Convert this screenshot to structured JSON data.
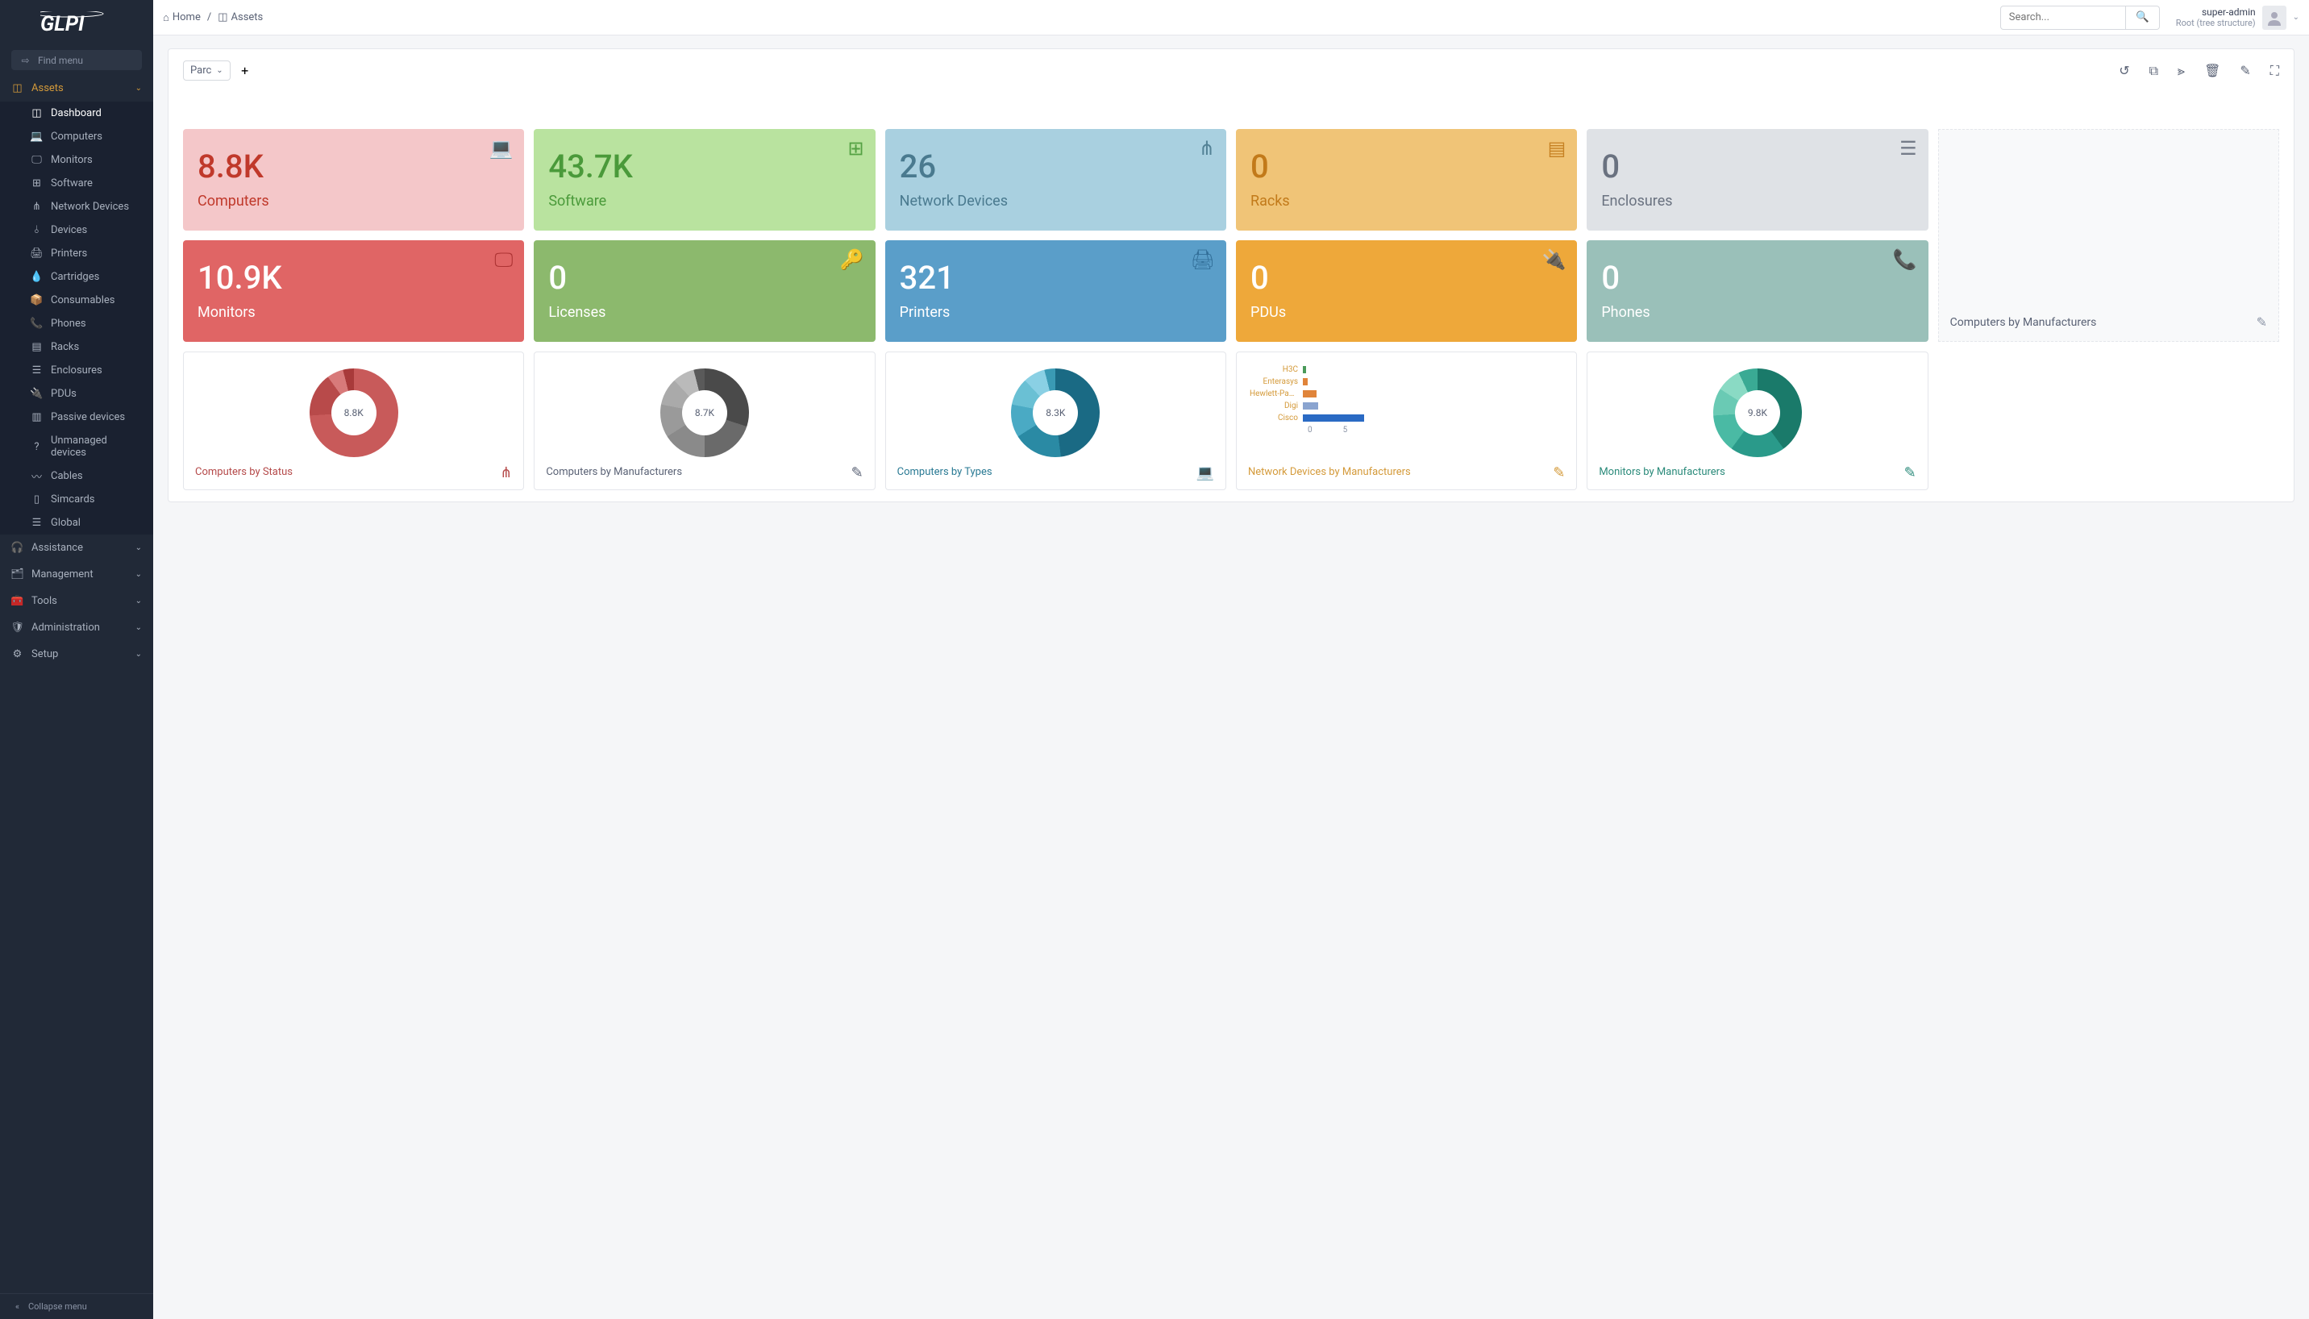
{
  "app": {
    "name": "GLPI"
  },
  "sidebar": {
    "find_menu": "Find menu",
    "sections": {
      "assets": {
        "label": "Assets",
        "active": true
      },
      "assistance": {
        "label": "Assistance"
      },
      "management": {
        "label": "Management"
      },
      "tools": {
        "label": "Tools"
      },
      "administration": {
        "label": "Administration"
      },
      "setup": {
        "label": "Setup"
      }
    },
    "assets_items": [
      {
        "label": "Dashboard",
        "active": true,
        "icon": "dashboard"
      },
      {
        "label": "Computers",
        "icon": "laptop"
      },
      {
        "label": "Monitors",
        "icon": "monitor"
      },
      {
        "label": "Software",
        "icon": "apps"
      },
      {
        "label": "Network Devices",
        "icon": "network"
      },
      {
        "label": "Devices",
        "icon": "usb"
      },
      {
        "label": "Printers",
        "icon": "printer"
      },
      {
        "label": "Cartridges",
        "icon": "droplet"
      },
      {
        "label": "Consumables",
        "icon": "box"
      },
      {
        "label": "Phones",
        "icon": "phone"
      },
      {
        "label": "Racks",
        "icon": "rack"
      },
      {
        "label": "Enclosures",
        "icon": "list"
      },
      {
        "label": "PDUs",
        "icon": "plug"
      },
      {
        "label": "Passive devices",
        "icon": "layout"
      },
      {
        "label": "Unmanaged devices",
        "icon": "question"
      },
      {
        "label": "Cables",
        "icon": "cable"
      },
      {
        "label": "Simcards",
        "icon": "sim"
      },
      {
        "label": "Global",
        "icon": "global"
      }
    ],
    "collapse": "Collapse menu"
  },
  "breadcrumb": {
    "home": "Home",
    "current": "Assets"
  },
  "search": {
    "placeholder": "Search..."
  },
  "user": {
    "name": "super-admin",
    "role": "Root (tree structure)"
  },
  "dashboard": {
    "selector": "Parc",
    "cards": [
      {
        "value": "8.8K",
        "label": "Computers",
        "bg": "#f4c7c9",
        "fg": "#c0392b",
        "icon": "laptop"
      },
      {
        "value": "43.7K",
        "label": "Software",
        "bg": "#b9e39f",
        "fg": "#4a9a3a",
        "icon": "apps"
      },
      {
        "value": "26",
        "label": "Network Devices",
        "bg": "#a9d0e0",
        "fg": "#4a7a8f",
        "icon": "network"
      },
      {
        "value": "0",
        "label": "Racks",
        "bg": "#f0c477",
        "fg": "#c27a1a",
        "icon": "rack"
      },
      {
        "value": "0",
        "label": "Enclosures",
        "bg": "#dfe2e6",
        "fg": "#6a7280",
        "icon": "list"
      },
      {
        "value": "10.9K",
        "label": "Monitors",
        "bg": "#e06565",
        "fg": "#a82e2e",
        "fg2": "#ffffff",
        "icon": "monitor"
      },
      {
        "value": "0",
        "label": "Licenses",
        "bg": "#8cb96d",
        "fg": "#4a7a3a",
        "fg2": "#ffffff",
        "icon": "key"
      },
      {
        "value": "321",
        "label": "Printers",
        "bg": "#5a9ec9",
        "fg": "#2e6a94",
        "fg2": "#ffffff",
        "icon": "printer"
      },
      {
        "value": "0",
        "label": "PDUs",
        "bg": "#eea83a",
        "fg": "#b87a1a",
        "fg2": "#ffffff",
        "icon": "plug"
      },
      {
        "value": "0",
        "label": "Phones",
        "bg": "#9ac0b9",
        "fg": "#5a8a82",
        "fg2": "#ffffff",
        "icon": "phone"
      }
    ],
    "empty_card": {
      "title": "Computers by Manufacturers"
    },
    "charts": [
      {
        "title": "Computers by Status",
        "title_color": "#b54a4a",
        "center": "8.8K",
        "type": "donut",
        "segments": [
          {
            "color": "#c85a5a",
            "value": 74
          },
          {
            "color": "#b84a4a",
            "value": 16
          },
          {
            "color": "#d87a7a",
            "value": 6
          },
          {
            "color": "#a83a3a",
            "value": 4
          }
        ],
        "icon": "tree"
      },
      {
        "title": "Computers by Manufacturers",
        "title_color": "#5a6275",
        "center": "8.7K",
        "type": "donut",
        "segments": [
          {
            "color": "#4a4a4a",
            "value": 30
          },
          {
            "color": "#6a6a6a",
            "value": 20
          },
          {
            "color": "#8a8a8a",
            "value": 16
          },
          {
            "color": "#9a9a9a",
            "value": 12
          },
          {
            "color": "#aaaaaa",
            "value": 10
          },
          {
            "color": "#bababa",
            "value": 8
          },
          {
            "color": "#5a5a5a",
            "value": 4
          }
        ],
        "icon": "edit"
      },
      {
        "title": "Computers by Types",
        "title_color": "#2a7a94",
        "center": "8.3K",
        "type": "donut",
        "segments": [
          {
            "color": "#1a6a84",
            "value": 48
          },
          {
            "color": "#2a8aa4",
            "value": 18
          },
          {
            "color": "#4aaac4",
            "value": 12
          },
          {
            "color": "#6ac0d4",
            "value": 10
          },
          {
            "color": "#8ad0e4",
            "value": 8
          },
          {
            "color": "#3a9ab4",
            "value": 4
          }
        ],
        "icon": "laptop"
      },
      {
        "title": "Network Devices by Manufacturers",
        "title_color": "#d49a3a",
        "type": "bars",
        "bars": [
          {
            "label": "H3C",
            "value": 0.3,
            "color": "#4a9a5a"
          },
          {
            "label": "Enterasys",
            "value": 0.4,
            "color": "#e0843a"
          },
          {
            "label": "Hewlett-Pack...",
            "value": 1.2,
            "color": "#e0843a"
          },
          {
            "label": "Digi",
            "value": 1.3,
            "color": "#8aa4d0"
          },
          {
            "label": "Cisco",
            "value": 5.2,
            "color": "#2a6ac4"
          }
        ],
        "axis": [
          "0",
          "5"
        ],
        "icon": "edit"
      },
      {
        "title": "Monitors by Manufacturers",
        "title_color": "#2a8a7a",
        "center": "9.8K",
        "type": "donut",
        "segments": [
          {
            "color": "#1a7a6a",
            "value": 40
          },
          {
            "color": "#2a9a8a",
            "value": 20
          },
          {
            "color": "#4abaa4",
            "value": 14
          },
          {
            "color": "#6acab4",
            "value": 10
          },
          {
            "color": "#8adac4",
            "value": 9
          },
          {
            "color": "#3aaa94",
            "value": 7
          }
        ],
        "icon": "edit"
      }
    ]
  }
}
